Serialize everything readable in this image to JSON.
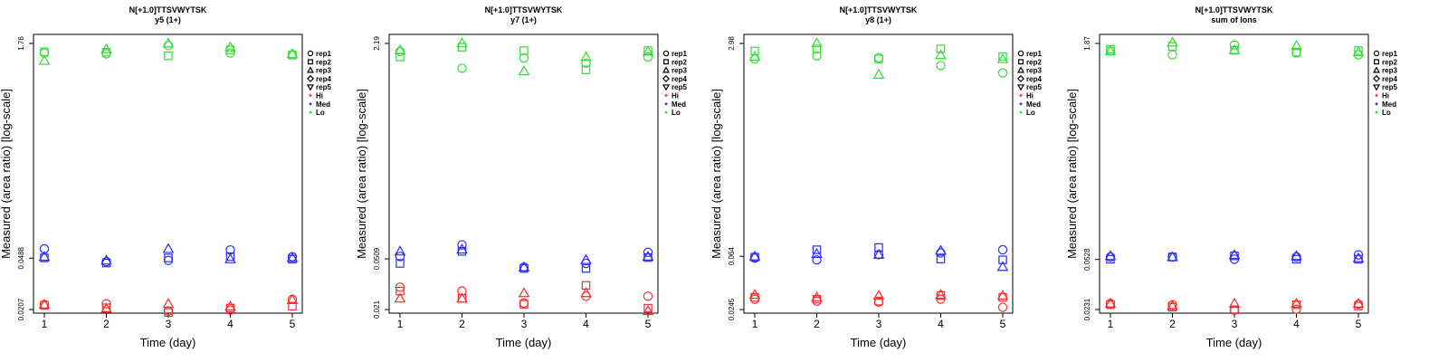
{
  "colors": {
    "Hi": "#ff2a2a",
    "Med": "#2b2bff",
    "Lo": "#33dd33"
  },
  "legend": {
    "reps": [
      {
        "label": "rep1",
        "shape": "circle"
      },
      {
        "label": "rep2",
        "shape": "square"
      },
      {
        "label": "rep3",
        "shape": "triangle-up"
      },
      {
        "label": "rep4",
        "shape": "diamond"
      },
      {
        "label": "rep5",
        "shape": "triangle-down"
      }
    ],
    "levels": [
      "Hi",
      "Med",
      "Lo"
    ]
  },
  "chart_data": [
    {
      "type": "scatter",
      "title": "N[+1.0]TTSVWYTSK",
      "subtitle": "y5 (1+)",
      "xlabel": "Time (day)",
      "ylabel": "Measured (area ratio) [log-scale]",
      "yscale": "log",
      "x_ticks": [
        1,
        2,
        3,
        4,
        5
      ],
      "y_ticks": [
        "0.0207",
        "0.0488",
        "1.76"
      ],
      "ylim": [
        0.0207,
        1.76
      ],
      "series": [
        {
          "level": "Lo",
          "rep": "rep1",
          "values": [
            1.5,
            1.48,
            1.7,
            1.5,
            1.46
          ]
        },
        {
          "level": "Lo",
          "rep": "rep2",
          "values": [
            1.53,
            1.52,
            1.43,
            1.58,
            1.45
          ]
        },
        {
          "level": "Lo",
          "rep": "rep3",
          "values": [
            1.32,
            1.6,
            1.76,
            1.65,
            1.48
          ]
        },
        {
          "level": "Med",
          "rep": "rep1",
          "values": [
            0.057,
            0.046,
            0.047,
            0.056,
            0.05
          ]
        },
        {
          "level": "Med",
          "rep": "rep2",
          "values": [
            0.049,
            0.045,
            0.049,
            0.05,
            0.048
          ]
        },
        {
          "level": "Med",
          "rep": "rep3",
          "values": [
            0.05,
            0.047,
            0.057,
            0.048,
            0.049
          ]
        },
        {
          "level": "Hi",
          "rep": "rep1",
          "values": [
            0.0225,
            0.0228,
            0.0202,
            0.0205,
            0.0245
          ]
        },
        {
          "level": "Hi",
          "rep": "rep2",
          "values": [
            0.0222,
            0.0213,
            0.0197,
            0.0212,
            0.0219
          ]
        },
        {
          "level": "Hi",
          "rep": "rep3",
          "values": [
            0.0225,
            0.021,
            0.0228,
            0.0218,
            0.0243
          ]
        }
      ]
    },
    {
      "type": "scatter",
      "title": "N[+1.0]TTSVWYTSK",
      "subtitle": "y7 (1+)",
      "xlabel": "Time (day)",
      "ylabel": "Measured (area ratio) [log-scale]",
      "yscale": "log",
      "x_ticks": [
        1,
        2,
        3,
        4,
        5
      ],
      "y_ticks": [
        "0.021",
        "0.0509",
        "2.19"
      ],
      "ylim": [
        0.021,
        2.19
      ],
      "series": [
        {
          "level": "Lo",
          "rep": "rep1",
          "values": [
            1.9,
            1.42,
            1.7,
            1.55,
            1.73
          ]
        },
        {
          "level": "Lo",
          "rep": "rep2",
          "values": [
            1.73,
            2.05,
            1.93,
            1.38,
            1.93
          ]
        },
        {
          "level": "Lo",
          "rep": "rep3",
          "values": [
            1.95,
            2.2,
            1.35,
            1.73,
            1.9
          ]
        },
        {
          "level": "Med",
          "rep": "rep1",
          "values": [
            0.053,
            0.065,
            0.044,
            0.047,
            0.057
          ]
        },
        {
          "level": "Med",
          "rep": "rep2",
          "values": [
            0.047,
            0.058,
            0.043,
            0.043,
            0.052
          ]
        },
        {
          "level": "Med",
          "rep": "rep3",
          "values": [
            0.058,
            0.06,
            0.044,
            0.05,
            0.053
          ]
        },
        {
          "level": "Hi",
          "rep": "rep1",
          "values": [
            0.031,
            0.029,
            0.0235,
            0.0265,
            0.0265
          ]
        },
        {
          "level": "Hi",
          "rep": "rep2",
          "values": [
            0.029,
            0.0255,
            0.023,
            0.032,
            0.0215
          ]
        },
        {
          "level": "Hi",
          "rep": "rep3",
          "values": [
            0.0255,
            0.0255,
            0.028,
            0.028,
            0.0205
          ]
        }
      ]
    },
    {
      "type": "scatter",
      "title": "N[+1.0]TTSVWYTSK",
      "subtitle": "y8 (1+)",
      "xlabel": "Time (day)",
      "ylabel": "Measured (area ratio) [log-scale]",
      "yscale": "log",
      "x_ticks": [
        1,
        2,
        3,
        4,
        5
      ],
      "y_ticks": [
        "0.0245",
        "0.064",
        "2.98"
      ],
      "ylim": [
        0.0245,
        2.98
      ],
      "series": [
        {
          "level": "Lo",
          "rep": "rep1",
          "values": [
            2.25,
            2.38,
            2.3,
            2.0,
            1.75
          ]
        },
        {
          "level": "Lo",
          "rep": "rep2",
          "values": [
            2.6,
            2.7,
            2.25,
            2.7,
            2.35
          ]
        },
        {
          "level": "Lo",
          "rep": "rep3",
          "values": [
            2.35,
            3.0,
            1.7,
            2.42,
            2.25
          ]
        },
        {
          "level": "Med",
          "rep": "rep1",
          "values": [
            0.062,
            0.06,
            0.066,
            0.068,
            0.072
          ]
        },
        {
          "level": "Med",
          "rep": "rep2",
          "values": [
            0.063,
            0.072,
            0.075,
            0.061,
            0.06
          ]
        },
        {
          "level": "Med",
          "rep": "rep3",
          "values": [
            0.064,
            0.067,
            0.066,
            0.071,
            0.053
          ]
        },
        {
          "level": "Hi",
          "rep": "rep1",
          "values": [
            0.0295,
            0.0285,
            0.028,
            0.0295,
            0.0255
          ]
        },
        {
          "level": "Hi",
          "rep": "rep2",
          "values": [
            0.0305,
            0.0295,
            0.0285,
            0.0315,
            0.0305
          ]
        },
        {
          "level": "Hi",
          "rep": "rep3",
          "values": [
            0.032,
            0.0305,
            0.0315,
            0.032,
            0.0315
          ]
        }
      ]
    },
    {
      "type": "scatter",
      "title": "N[+1.0]TTSVWYTSK",
      "subtitle": "sum of Ions",
      "xlabel": "Time (day)",
      "ylabel": "Measured (area ratio) [log-scale]",
      "yscale": "log",
      "x_ticks": [
        1,
        2,
        3,
        4,
        5
      ],
      "y_ticks": [
        "0.0231",
        "0.0528",
        "1.87"
      ],
      "ylim": [
        0.0231,
        1.87
      ],
      "series": [
        {
          "level": "Lo",
          "rep": "rep1",
          "values": [
            1.65,
            1.55,
            1.82,
            1.6,
            1.55
          ]
        },
        {
          "level": "Lo",
          "rep": "rep2",
          "values": [
            1.7,
            1.78,
            1.67,
            1.62,
            1.66
          ]
        },
        {
          "level": "Lo",
          "rep": "rep3",
          "values": [
            1.65,
            1.9,
            1.68,
            1.8,
            1.62
          ]
        },
        {
          "level": "Med",
          "rep": "rep1",
          "values": [
            0.055,
            0.055,
            0.053,
            0.055,
            0.057
          ]
        },
        {
          "level": "Med",
          "rep": "rep2",
          "values": [
            0.053,
            0.055,
            0.056,
            0.053,
            0.053
          ]
        },
        {
          "level": "Med",
          "rep": "rep3",
          "values": [
            0.056,
            0.055,
            0.057,
            0.056,
            0.054
          ]
        },
        {
          "level": "Hi",
          "rep": "rep1",
          "values": [
            0.0255,
            0.025,
            0.0228,
            0.0232,
            0.0252
          ]
        },
        {
          "level": "Hi",
          "rep": "rep2",
          "values": [
            0.025,
            0.024,
            0.023,
            0.025,
            0.0245
          ]
        },
        {
          "level": "Hi",
          "rep": "rep3",
          "values": [
            0.0255,
            0.0245,
            0.0255,
            0.0255,
            0.0255
          ]
        }
      ]
    }
  ]
}
